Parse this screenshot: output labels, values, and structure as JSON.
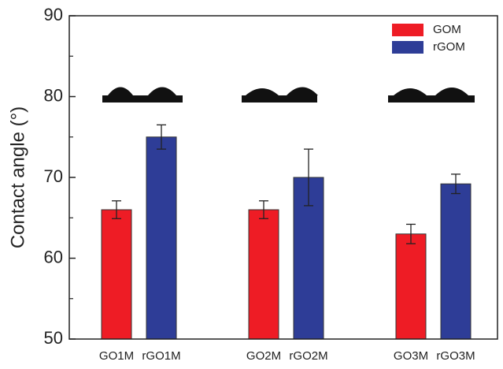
{
  "chart_data": {
    "type": "bar",
    "y_label": "Contact angle (°)",
    "categories": [
      "GO1M",
      "rGO1M",
      "GO2M",
      "rGO2M",
      "GO3M",
      "rGO3M"
    ],
    "series": [
      {
        "name": "GOM",
        "color": "#ee1c25",
        "values": [
          66,
          null,
          66,
          null,
          63,
          null
        ],
        "errors": [
          1.1,
          null,
          1.1,
          null,
          1.2,
          null
        ]
      },
      {
        "name": "rGOM",
        "color": "#2e3d97",
        "values": [
          null,
          75,
          null,
          70,
          null,
          69.2
        ],
        "errors": [
          null,
          1.5,
          null,
          3.5,
          null,
          1.2
        ]
      }
    ],
    "ylim": [
      50,
      90
    ],
    "yticks": [
      50,
      60,
      70,
      80,
      90
    ],
    "yminorticks": [
      55,
      65,
      75,
      85
    ],
    "legend": "top-right"
  }
}
